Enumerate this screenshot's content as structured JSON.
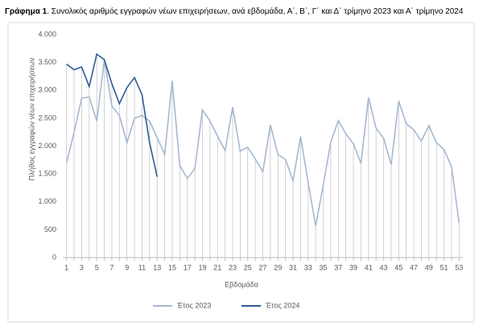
{
  "chart_data": {
    "type": "line",
    "caption_label": "Γράφημα 1",
    "title": ". Συνολικός αριθμός εγγραφών νέων επιχειρήσεων, ανά εβδομάδα, Α΄, Β΄, Γ΄ και Δ΄ τρίμηνο 2023 και Α΄ τρίμηνο 2024",
    "x_label": "Εβδομάδα",
    "y_label": "Πλήθος εγγραφών νέων επιχειρήσεων",
    "x": [
      1,
      2,
      3,
      4,
      5,
      6,
      7,
      8,
      9,
      10,
      11,
      12,
      13,
      14,
      15,
      16,
      17,
      18,
      19,
      20,
      21,
      22,
      23,
      24,
      25,
      26,
      27,
      28,
      29,
      30,
      31,
      32,
      33,
      34,
      35,
      36,
      37,
      38,
      39,
      40,
      41,
      42,
      43,
      44,
      45,
      46,
      47,
      48,
      49,
      50,
      51,
      52,
      53
    ],
    "xlim": [
      0.5,
      53.5
    ],
    "xticks": [
      1,
      3,
      5,
      7,
      9,
      11,
      13,
      15,
      17,
      19,
      21,
      23,
      25,
      27,
      29,
      31,
      33,
      35,
      37,
      39,
      41,
      43,
      45,
      47,
      49,
      51,
      53
    ],
    "ylim": [
      0,
      4000
    ],
    "yticks": [
      {
        "value": 0,
        "label": "0"
      },
      {
        "value": 500,
        "label": "500"
      },
      {
        "value": 1000,
        "label": "1.000"
      },
      {
        "value": 1500,
        "label": "1.500"
      },
      {
        "value": 2000,
        "label": "2.000"
      },
      {
        "value": 2500,
        "label": "2.500"
      },
      {
        "value": 3000,
        "label": "3.000"
      },
      {
        "value": 3500,
        "label": "3.500"
      },
      {
        "value": 4000,
        "label": "4.000"
      }
    ],
    "drop_lines": true,
    "legend": "bottom",
    "series": [
      {
        "name": "Έτος 2023",
        "color": "#a5b8d0",
        "values": [
          1700,
          2250,
          2860,
          2880,
          2450,
          3550,
          2720,
          2550,
          2060,
          2500,
          2550,
          2450,
          2150,
          1850,
          3170,
          1650,
          1420,
          1600,
          2650,
          2450,
          2180,
          1920,
          2700,
          1910,
          1980,
          1770,
          1540,
          2380,
          1850,
          1760,
          1380,
          2170,
          1350,
          570,
          1300,
          2070,
          2460,
          2220,
          2040,
          1690,
          2870,
          2320,
          2140,
          1670,
          2810,
          2400,
          2290,
          2090,
          2370,
          2060,
          1940,
          1630,
          620
        ]
      },
      {
        "name": "Έτος 2024",
        "color": "#2e5c96",
        "values": [
          3470,
          3370,
          3420,
          3070,
          3650,
          3550,
          3120,
          2760,
          3050,
          3230,
          2920,
          2060,
          1450,
          null,
          null,
          null,
          null,
          null,
          null,
          null,
          null,
          null,
          null,
          null,
          null,
          null,
          null,
          null,
          null,
          null,
          null,
          null,
          null,
          null,
          null,
          null,
          null,
          null,
          null,
          null,
          null,
          null,
          null,
          null,
          null,
          null,
          null,
          null,
          null,
          null,
          null,
          null,
          null
        ]
      }
    ]
  }
}
